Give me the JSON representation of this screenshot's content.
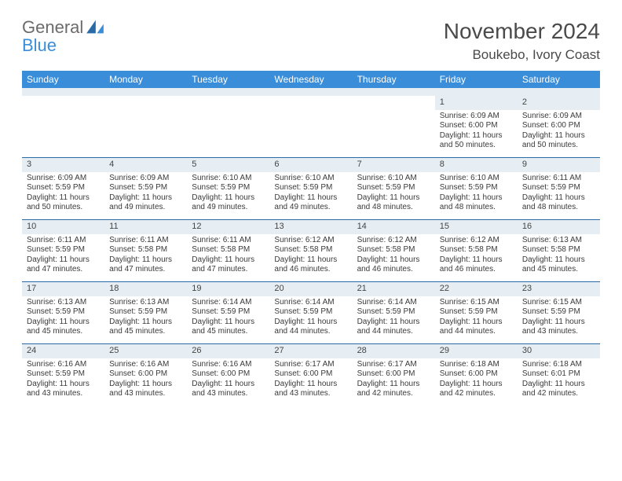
{
  "brand": {
    "part1": "General",
    "part2": "Blue"
  },
  "title": "November 2024",
  "location": "Boukebo, Ivory Coast",
  "colors": {
    "header_bg": "#3a8dd8",
    "header_fg": "#ffffff",
    "daynum_bg": "#e7eef3",
    "rule": "#2a6aa5",
    "text": "#3a3a3a",
    "brand_grey": "#6b6b6b",
    "brand_blue": "#3a8dd8"
  },
  "day_names": [
    "Sunday",
    "Monday",
    "Tuesday",
    "Wednesday",
    "Thursday",
    "Friday",
    "Saturday"
  ],
  "weeks": [
    [
      {
        "n": "",
        "lines": []
      },
      {
        "n": "",
        "lines": []
      },
      {
        "n": "",
        "lines": []
      },
      {
        "n": "",
        "lines": []
      },
      {
        "n": "",
        "lines": []
      },
      {
        "n": "1",
        "lines": [
          "Sunrise: 6:09 AM",
          "Sunset: 6:00 PM",
          "Daylight: 11 hours and 50 minutes."
        ]
      },
      {
        "n": "2",
        "lines": [
          "Sunrise: 6:09 AM",
          "Sunset: 6:00 PM",
          "Daylight: 11 hours and 50 minutes."
        ]
      }
    ],
    [
      {
        "n": "3",
        "lines": [
          "Sunrise: 6:09 AM",
          "Sunset: 5:59 PM",
          "Daylight: 11 hours and 50 minutes."
        ]
      },
      {
        "n": "4",
        "lines": [
          "Sunrise: 6:09 AM",
          "Sunset: 5:59 PM",
          "Daylight: 11 hours and 49 minutes."
        ]
      },
      {
        "n": "5",
        "lines": [
          "Sunrise: 6:10 AM",
          "Sunset: 5:59 PM",
          "Daylight: 11 hours and 49 minutes."
        ]
      },
      {
        "n": "6",
        "lines": [
          "Sunrise: 6:10 AM",
          "Sunset: 5:59 PM",
          "Daylight: 11 hours and 49 minutes."
        ]
      },
      {
        "n": "7",
        "lines": [
          "Sunrise: 6:10 AM",
          "Sunset: 5:59 PM",
          "Daylight: 11 hours and 48 minutes."
        ]
      },
      {
        "n": "8",
        "lines": [
          "Sunrise: 6:10 AM",
          "Sunset: 5:59 PM",
          "Daylight: 11 hours and 48 minutes."
        ]
      },
      {
        "n": "9",
        "lines": [
          "Sunrise: 6:11 AM",
          "Sunset: 5:59 PM",
          "Daylight: 11 hours and 48 minutes."
        ]
      }
    ],
    [
      {
        "n": "10",
        "lines": [
          "Sunrise: 6:11 AM",
          "Sunset: 5:59 PM",
          "Daylight: 11 hours and 47 minutes."
        ]
      },
      {
        "n": "11",
        "lines": [
          "Sunrise: 6:11 AM",
          "Sunset: 5:58 PM",
          "Daylight: 11 hours and 47 minutes."
        ]
      },
      {
        "n": "12",
        "lines": [
          "Sunrise: 6:11 AM",
          "Sunset: 5:58 PM",
          "Daylight: 11 hours and 47 minutes."
        ]
      },
      {
        "n": "13",
        "lines": [
          "Sunrise: 6:12 AM",
          "Sunset: 5:58 PM",
          "Daylight: 11 hours and 46 minutes."
        ]
      },
      {
        "n": "14",
        "lines": [
          "Sunrise: 6:12 AM",
          "Sunset: 5:58 PM",
          "Daylight: 11 hours and 46 minutes."
        ]
      },
      {
        "n": "15",
        "lines": [
          "Sunrise: 6:12 AM",
          "Sunset: 5:58 PM",
          "Daylight: 11 hours and 46 minutes."
        ]
      },
      {
        "n": "16",
        "lines": [
          "Sunrise: 6:13 AM",
          "Sunset: 5:58 PM",
          "Daylight: 11 hours and 45 minutes."
        ]
      }
    ],
    [
      {
        "n": "17",
        "lines": [
          "Sunrise: 6:13 AM",
          "Sunset: 5:59 PM",
          "Daylight: 11 hours and 45 minutes."
        ]
      },
      {
        "n": "18",
        "lines": [
          "Sunrise: 6:13 AM",
          "Sunset: 5:59 PM",
          "Daylight: 11 hours and 45 minutes."
        ]
      },
      {
        "n": "19",
        "lines": [
          "Sunrise: 6:14 AM",
          "Sunset: 5:59 PM",
          "Daylight: 11 hours and 45 minutes."
        ]
      },
      {
        "n": "20",
        "lines": [
          "Sunrise: 6:14 AM",
          "Sunset: 5:59 PM",
          "Daylight: 11 hours and 44 minutes."
        ]
      },
      {
        "n": "21",
        "lines": [
          "Sunrise: 6:14 AM",
          "Sunset: 5:59 PM",
          "Daylight: 11 hours and 44 minutes."
        ]
      },
      {
        "n": "22",
        "lines": [
          "Sunrise: 6:15 AM",
          "Sunset: 5:59 PM",
          "Daylight: 11 hours and 44 minutes."
        ]
      },
      {
        "n": "23",
        "lines": [
          "Sunrise: 6:15 AM",
          "Sunset: 5:59 PM",
          "Daylight: 11 hours and 43 minutes."
        ]
      }
    ],
    [
      {
        "n": "24",
        "lines": [
          "Sunrise: 6:16 AM",
          "Sunset: 5:59 PM",
          "Daylight: 11 hours and 43 minutes."
        ]
      },
      {
        "n": "25",
        "lines": [
          "Sunrise: 6:16 AM",
          "Sunset: 6:00 PM",
          "Daylight: 11 hours and 43 minutes."
        ]
      },
      {
        "n": "26",
        "lines": [
          "Sunrise: 6:16 AM",
          "Sunset: 6:00 PM",
          "Daylight: 11 hours and 43 minutes."
        ]
      },
      {
        "n": "27",
        "lines": [
          "Sunrise: 6:17 AM",
          "Sunset: 6:00 PM",
          "Daylight: 11 hours and 43 minutes."
        ]
      },
      {
        "n": "28",
        "lines": [
          "Sunrise: 6:17 AM",
          "Sunset: 6:00 PM",
          "Daylight: 11 hours and 42 minutes."
        ]
      },
      {
        "n": "29",
        "lines": [
          "Sunrise: 6:18 AM",
          "Sunset: 6:00 PM",
          "Daylight: 11 hours and 42 minutes."
        ]
      },
      {
        "n": "30",
        "lines": [
          "Sunrise: 6:18 AM",
          "Sunset: 6:01 PM",
          "Daylight: 11 hours and 42 minutes."
        ]
      }
    ]
  ]
}
